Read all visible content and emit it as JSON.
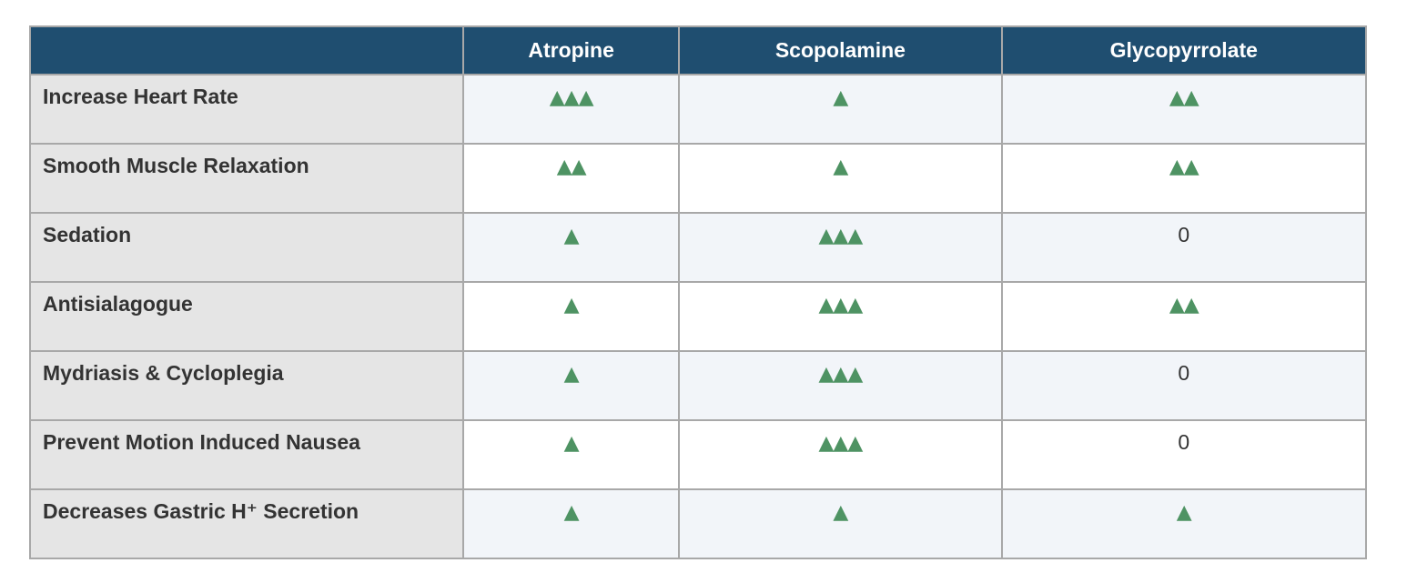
{
  "table": {
    "columns": [
      "Atropine",
      "Scopolamine",
      "Glycopyrrolate"
    ],
    "rows": [
      {
        "label": "Increase Heart Rate",
        "values": [
          "▲▲▲",
          "▲",
          "▲▲"
        ]
      },
      {
        "label": "Smooth Muscle Relaxation",
        "values": [
          "▲▲",
          "▲",
          "▲▲"
        ]
      },
      {
        "label": "Sedation",
        "values": [
          "▲",
          "▲▲▲",
          "0"
        ]
      },
      {
        "label": "Antisialagogue",
        "values": [
          "▲",
          "▲▲▲",
          "▲▲"
        ]
      },
      {
        "label": "Mydriasis & Cycloplegia",
        "values": [
          "▲",
          "▲▲▲",
          "0"
        ]
      },
      {
        "label": "Prevent Motion Induced Nausea",
        "values": [
          "▲",
          "▲▲▲",
          "0"
        ]
      },
      {
        "label": "Decreases Gastric H⁺ Secretion",
        "values": [
          "▲",
          "▲",
          "▲"
        ]
      }
    ]
  }
}
